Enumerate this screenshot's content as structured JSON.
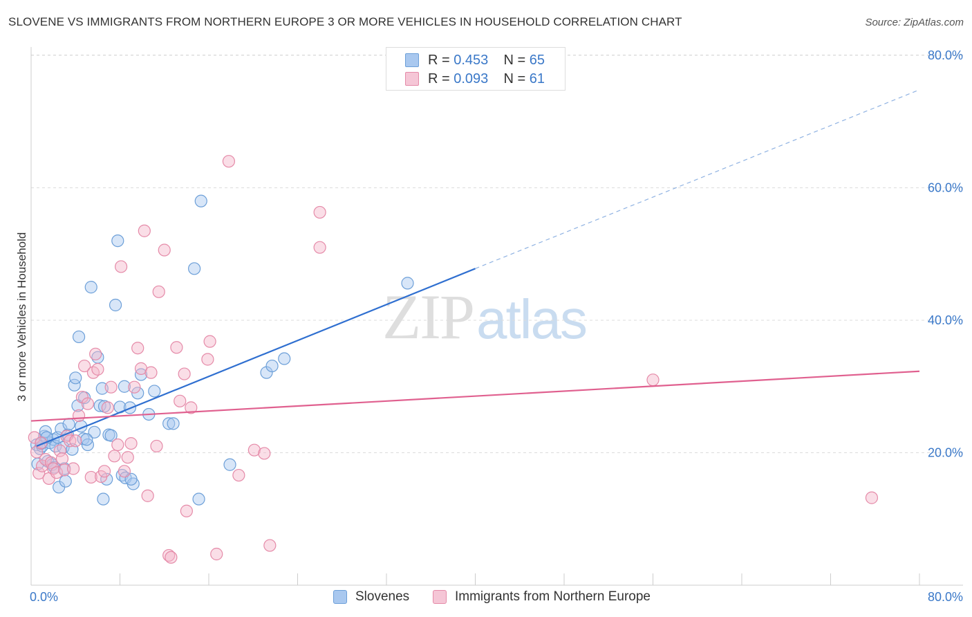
{
  "title": "SLOVENE VS IMMIGRANTS FROM NORTHERN EUROPE 3 OR MORE VEHICLES IN HOUSEHOLD CORRELATION CHART",
  "source": "Source: ZipAtlas.com",
  "watermark": {
    "zip": "ZIP",
    "atlas": "atlas"
  },
  "legend_top": [
    {
      "r_label": "R = ",
      "r_value": "0.453",
      "n_label": "N = ",
      "n_value": "65",
      "color": "#a9c8ef"
    },
    {
      "r_label": "R = ",
      "r_value": "0.093",
      "n_label": "N = ",
      "n_value": "61",
      "color": "#f5b6ca"
    }
  ],
  "legend_bottom": [
    {
      "label": "Slovenes",
      "color": "#a9c8ef"
    },
    {
      "label": "Immigrants from Northern Europe",
      "color": "#f5b6ca"
    }
  ],
  "chart_data": {
    "type": "scatter",
    "ylabel": "3 or more Vehicles in Household",
    "xlabel": "",
    "xlim": [
      0,
      80
    ],
    "ylim": [
      0,
      80
    ],
    "x_tick_labels": [
      "0.0%",
      "80.0%"
    ],
    "y_tick_labels": [
      "20.0%",
      "40.0%",
      "60.0%",
      "80.0%"
    ],
    "y_ticks": [
      20,
      40,
      60,
      80
    ],
    "grid": true,
    "series": [
      {
        "name": "Slovenes",
        "color": "#6c9fd8",
        "fill": "#a9c8ef",
        "points": [
          [
            0.5,
            21.2
          ],
          [
            0.6,
            18.3
          ],
          [
            0.8,
            20.6
          ],
          [
            1.0,
            21.0
          ],
          [
            1.2,
            22.5
          ],
          [
            1.3,
            23.2
          ],
          [
            1.5,
            18.7
          ],
          [
            1.7,
            21.5
          ],
          [
            1.9,
            18.2
          ],
          [
            2.0,
            22.0
          ],
          [
            2.2,
            21.0
          ],
          [
            2.4,
            22.3
          ],
          [
            2.5,
            14.8
          ],
          [
            2.7,
            23.6
          ],
          [
            2.9,
            20.8
          ],
          [
            3.0,
            17.6
          ],
          [
            3.1,
            15.7
          ],
          [
            3.3,
            22.7
          ],
          [
            3.4,
            24.3
          ],
          [
            3.7,
            20.5
          ],
          [
            3.9,
            30.2
          ],
          [
            4.0,
            31.3
          ],
          [
            4.2,
            27.1
          ],
          [
            4.3,
            37.5
          ],
          [
            4.5,
            24.0
          ],
          [
            4.7,
            22.1
          ],
          [
            4.8,
            28.3
          ],
          [
            5.1,
            21.2
          ],
          [
            5.4,
            45.0
          ],
          [
            5.7,
            23.1
          ],
          [
            6.0,
            34.4
          ],
          [
            6.2,
            27.1
          ],
          [
            6.4,
            29.7
          ],
          [
            6.5,
            13.0
          ],
          [
            6.8,
            16.0
          ],
          [
            7.0,
            22.7
          ],
          [
            7.2,
            22.6
          ],
          [
            7.6,
            42.3
          ],
          [
            7.8,
            52.0
          ],
          [
            8.0,
            26.9
          ],
          [
            8.2,
            16.6
          ],
          [
            8.4,
            30.0
          ],
          [
            8.5,
            16.2
          ],
          [
            8.9,
            26.8
          ],
          [
            9.2,
            15.3
          ],
          [
            9.6,
            29.0
          ],
          [
            9.9,
            31.8
          ],
          [
            10.6,
            25.8
          ],
          [
            11.1,
            29.3
          ],
          [
            12.4,
            24.4
          ],
          [
            12.8,
            24.4
          ],
          [
            14.7,
            47.8
          ],
          [
            15.1,
            13.0
          ],
          [
            15.3,
            58.0
          ],
          [
            17.9,
            18.2
          ],
          [
            21.2,
            32.1
          ],
          [
            21.7,
            33.1
          ],
          [
            22.8,
            34.2
          ],
          [
            33.9,
            45.6
          ],
          [
            1.4,
            22.3
          ],
          [
            2.1,
            17.8
          ],
          [
            5.0,
            22.0
          ],
          [
            6.6,
            27.0
          ],
          [
            9.0,
            16.0
          ],
          [
            0.9,
            21.4
          ]
        ]
      },
      {
        "name": "Immigrants from Northern Europe",
        "color": "#e58aa8",
        "fill": "#f5b6ca",
        "points": [
          [
            0.3,
            22.3
          ],
          [
            0.5,
            20.1
          ],
          [
            0.7,
            16.9
          ],
          [
            0.9,
            21.5
          ],
          [
            1.0,
            18.0
          ],
          [
            1.3,
            19.0
          ],
          [
            1.6,
            16.1
          ],
          [
            1.8,
            18.5
          ],
          [
            2.0,
            17.6
          ],
          [
            2.3,
            17.0
          ],
          [
            2.6,
            20.3
          ],
          [
            2.8,
            19.1
          ],
          [
            3.0,
            17.4
          ],
          [
            3.2,
            22.5
          ],
          [
            3.5,
            21.8
          ],
          [
            3.8,
            17.6
          ],
          [
            4.0,
            21.8
          ],
          [
            4.3,
            25.6
          ],
          [
            4.6,
            28.4
          ],
          [
            4.8,
            33.1
          ],
          [
            5.1,
            27.4
          ],
          [
            5.4,
            16.3
          ],
          [
            5.6,
            32.1
          ],
          [
            5.8,
            34.9
          ],
          [
            6.0,
            32.6
          ],
          [
            6.3,
            16.4
          ],
          [
            6.6,
            17.2
          ],
          [
            6.9,
            26.8
          ],
          [
            7.2,
            29.9
          ],
          [
            7.5,
            19.5
          ],
          [
            7.8,
            21.2
          ],
          [
            8.1,
            48.1
          ],
          [
            8.4,
            17.2
          ],
          [
            8.7,
            19.3
          ],
          [
            9.0,
            21.4
          ],
          [
            9.3,
            29.9
          ],
          [
            9.6,
            35.8
          ],
          [
            9.9,
            32.7
          ],
          [
            10.2,
            53.5
          ],
          [
            10.5,
            13.5
          ],
          [
            10.8,
            32.1
          ],
          [
            11.3,
            21.0
          ],
          [
            11.5,
            44.3
          ],
          [
            12.0,
            50.6
          ],
          [
            12.4,
            4.5
          ],
          [
            12.6,
            4.2
          ],
          [
            13.1,
            35.9
          ],
          [
            13.4,
            27.8
          ],
          [
            13.8,
            31.9
          ],
          [
            14.0,
            11.2
          ],
          [
            14.4,
            26.8
          ],
          [
            15.9,
            34.1
          ],
          [
            16.1,
            36.8
          ],
          [
            16.7,
            4.7
          ],
          [
            17.8,
            64.0
          ],
          [
            18.7,
            16.6
          ],
          [
            20.1,
            20.4
          ],
          [
            21.0,
            19.9
          ],
          [
            21.5,
            6.0
          ],
          [
            26.0,
            51.0
          ],
          [
            26.0,
            56.3
          ]
        ],
        "outliers": [
          [
            56.0,
            31.0
          ],
          [
            75.7,
            13.2
          ]
        ]
      }
    ],
    "trendlines": [
      {
        "series": "Slovenes",
        "color": "#2f6fd0",
        "x": [
          0.5,
          40.0
        ],
        "y": [
          21.0,
          47.8
        ],
        "dashed_extension_to": [
          80.0,
          74.8
        ]
      },
      {
        "series": "Immigrants from Northern Europe",
        "color": "#e0608f",
        "x": [
          0.0,
          80.0
        ],
        "y": [
          24.8,
          32.3
        ]
      }
    ]
  }
}
